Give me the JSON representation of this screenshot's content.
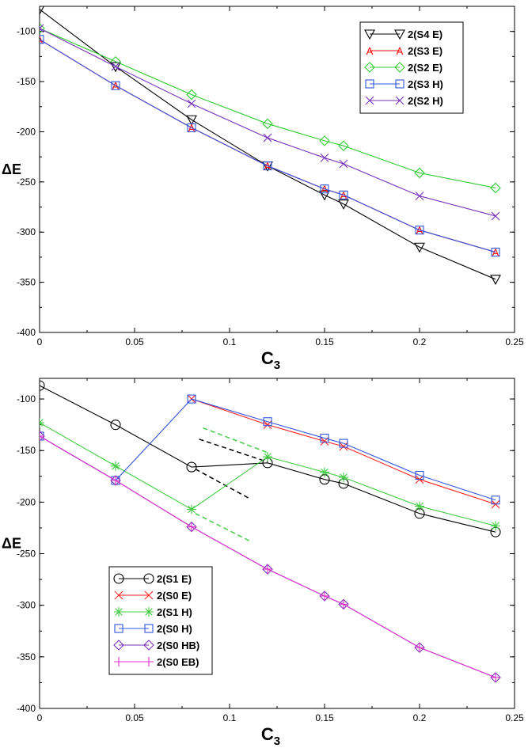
{
  "chart_data": [
    {
      "type": "line",
      "title": "",
      "xlabel": "C3",
      "ylabel": "ΔE",
      "xlim": [
        0,
        0.25
      ],
      "ylim": [
        -400,
        -75
      ],
      "xticks": [
        "0",
        "0.05",
        "0.1",
        "0.15",
        "0.2",
        "0.25"
      ],
      "yticks": [
        "-100",
        "-150",
        "-200",
        "-250",
        "-300",
        "-350",
        "-400"
      ],
      "legend_position": "top-right",
      "series": [
        {
          "name": "2(S4 E)",
          "color": "#000000",
          "marker": "triangle-down",
          "x": [
            0,
            0.04,
            0.08,
            0.12,
            0.15,
            0.16,
            0.2,
            0.24
          ],
          "y": [
            -78,
            -135,
            -188,
            -234,
            -263,
            -272,
            -315,
            -347
          ]
        },
        {
          "name": "2(S3 E)",
          "color": "#ff0000",
          "marker": "A",
          "x": [
            0,
            0.04,
            0.08,
            0.12,
            0.15,
            0.16,
            0.2,
            0.24
          ],
          "y": [
            -108,
            -154,
            -196,
            -234,
            -257,
            -263,
            -298,
            -320
          ]
        },
        {
          "name": "2(S2 E)",
          "color": "#33cc33",
          "marker": "diamond",
          "x": [
            0,
            0.04,
            0.08,
            0.12,
            0.15,
            0.16,
            0.2,
            0.24
          ],
          "y": [
            -97,
            -130,
            -163,
            -192,
            -209,
            -214,
            -241,
            -256
          ]
        },
        {
          "name": "2(S3 H)",
          "color": "#3355dd",
          "marker": "square",
          "x": [
            0,
            0.04,
            0.08,
            0.12,
            0.15,
            0.16,
            0.2,
            0.24
          ],
          "y": [
            -108,
            -154,
            -196,
            -234,
            -257,
            -263,
            -298,
            -320
          ]
        },
        {
          "name": "2(S2 H)",
          "color": "#7733bb",
          "marker": "x",
          "x": [
            0,
            0.04,
            0.08,
            0.12,
            0.15,
            0.16,
            0.2,
            0.24
          ],
          "y": [
            -97,
            -135,
            -172,
            -206,
            -226,
            -232,
            -264,
            -284
          ]
        }
      ],
      "dashed_lines": []
    },
    {
      "type": "line",
      "title": "",
      "xlabel": "C3",
      "ylabel": "ΔE",
      "xlim": [
        0,
        0.25
      ],
      "ylim": [
        -400,
        -80
      ],
      "xticks": [
        "0",
        "0.05",
        "0.1",
        "0.15",
        "0.2",
        "0.25"
      ],
      "yticks": [
        "-100",
        "-150",
        "-200",
        "-250",
        "-300",
        "-350",
        "-400"
      ],
      "legend_position": "bottom-left",
      "series": [
        {
          "name": "2(S1 E)",
          "color": "#000000",
          "marker": "circle",
          "x": [
            0,
            0.04,
            0.08,
            0.12,
            0.15,
            0.16,
            0.2,
            0.24
          ],
          "y": [
            -87,
            -125,
            -166,
            -162,
            -178,
            -182,
            -211,
            -229
          ]
        },
        {
          "name": "2(S0 E)",
          "color": "#ff2222",
          "marker": "x",
          "x": [
            0.08,
            0.12,
            0.15,
            0.16,
            0.2,
            0.24
          ],
          "y": [
            -100,
            -125,
            -141,
            -146,
            -178,
            -202
          ]
        },
        {
          "name": "2(S1 H)",
          "color": "#44cc44",
          "marker": "asterisk",
          "x": [
            0,
            0.04,
            0.08,
            0.12,
            0.15,
            0.16,
            0.2,
            0.24
          ],
          "y": [
            -123,
            -165,
            -207,
            -156,
            -171,
            -176,
            -204,
            -223
          ]
        },
        {
          "name": "2(S0 H)",
          "color": "#3355dd",
          "marker": "square",
          "x": [
            0,
            0.04,
            0.08,
            0.12,
            0.15,
            0.16,
            0.2,
            0.24
          ],
          "y": [
            -136,
            -179,
            -100,
            -122,
            -138,
            -143,
            -174,
            -198
          ]
        },
        {
          "name": "2(S0 HB)",
          "color": "#7733bb",
          "marker": "diamond",
          "x": [
            0,
            0.04,
            0.08,
            0.12,
            0.15,
            0.16,
            0.2,
            0.24
          ],
          "y": [
            -136,
            -179,
            -224,
            -265,
            -291,
            -299,
            -341,
            -370
          ]
        },
        {
          "name": "2(S0 EB)",
          "color": "#dd33cc",
          "marker": "plus",
          "x": [
            0,
            0.04,
            0.08,
            0.12,
            0.15,
            0.16,
            0.2,
            0.24
          ],
          "y": [
            -136,
            -179,
            -224,
            -265,
            -291,
            -299,
            -341,
            -370
          ]
        }
      ],
      "dashed_lines": [
        {
          "color": "#000000",
          "x": [
            0.084,
            0.12
          ],
          "y": [
            -139,
            -161
          ]
        },
        {
          "color": "#000000",
          "x": [
            0.082,
            0.111
          ],
          "y": [
            -168,
            -197
          ]
        },
        {
          "color": "#44cc44",
          "x": [
            0.086,
            0.12
          ],
          "y": [
            -128,
            -152
          ]
        },
        {
          "color": "#44cc44",
          "x": [
            0.082,
            0.111
          ],
          "y": [
            -211,
            -238
          ]
        }
      ]
    }
  ]
}
